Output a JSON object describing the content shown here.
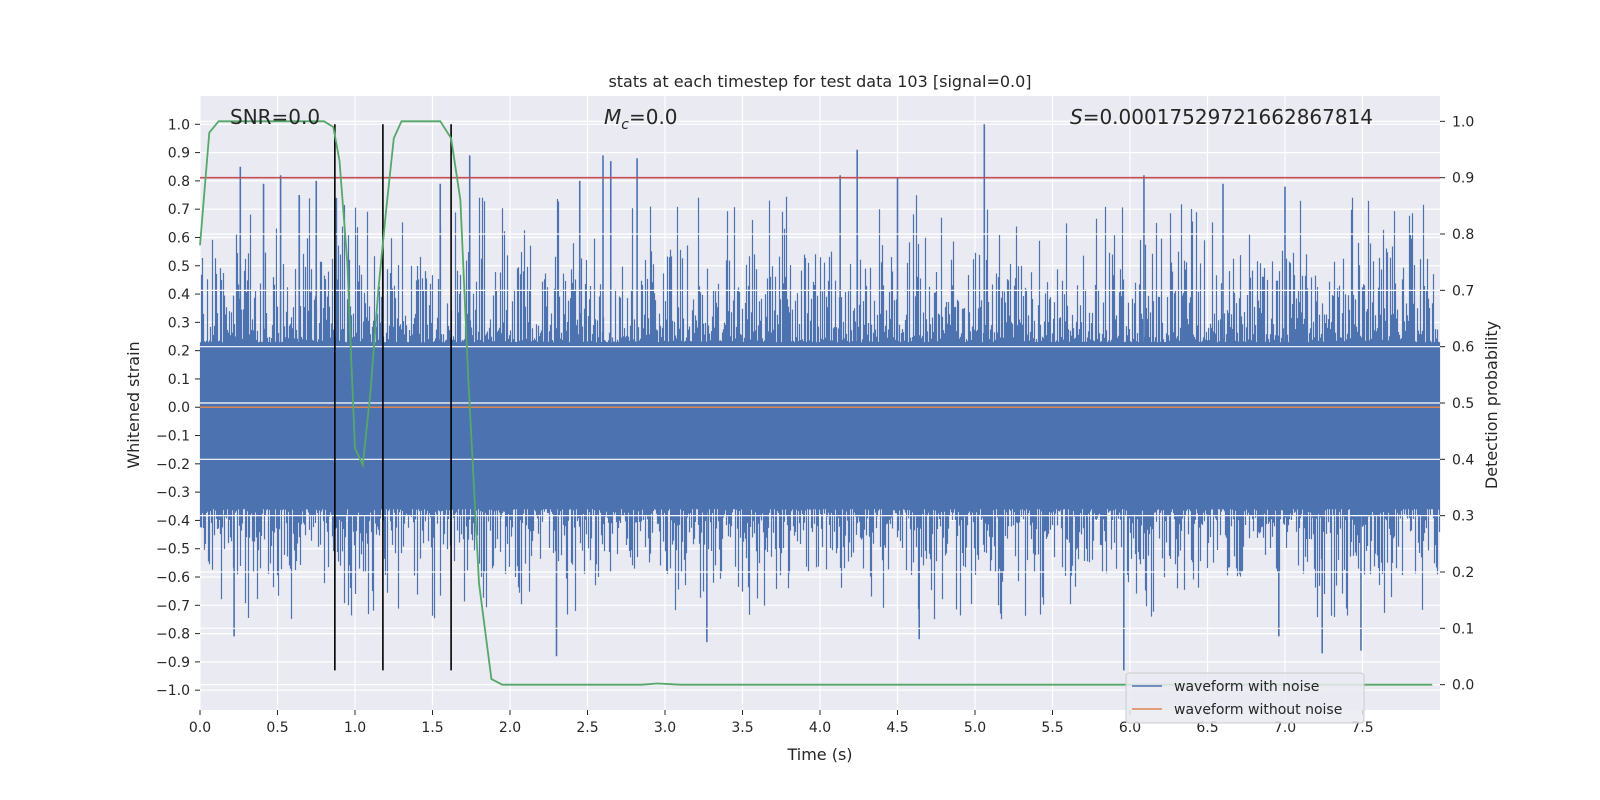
{
  "chart_data": {
    "type": "line",
    "title": "stats at each timestep for test data 103 [signal=0.0]",
    "xlabel": "Time (s)",
    "ylabel": "Whitened strain",
    "ylabel_right": "Detection probability",
    "xlim": [
      0.0,
      8.0
    ],
    "ylim": [
      -1.07,
      1.1
    ],
    "ylim_right": [
      -0.045,
      1.045
    ],
    "x_ticks": [
      "0.0",
      "0.5",
      "1.0",
      "1.5",
      "2.0",
      "2.5",
      "3.0",
      "3.5",
      "4.0",
      "4.5",
      "5.0",
      "5.5",
      "6.0",
      "6.5",
      "7.0",
      "7.5"
    ],
    "x_tick_values": [
      0.0,
      0.5,
      1.0,
      1.5,
      2.0,
      2.5,
      3.0,
      3.5,
      4.0,
      4.5,
      5.0,
      5.5,
      6.0,
      6.5,
      7.0,
      7.5
    ],
    "y_ticks": [
      "1.0",
      "0.9",
      "0.8",
      "0.7",
      "0.6",
      "0.5",
      "0.4",
      "0.3",
      "0.2",
      "0.1",
      "0.0",
      "−0.1",
      "−0.2",
      "−0.3",
      "−0.4",
      "−0.5",
      "−0.6",
      "−0.7",
      "−0.8",
      "−0.9",
      "−1.0"
    ],
    "y_tick_values": [
      1.0,
      0.9,
      0.8,
      0.7,
      0.6,
      0.5,
      0.4,
      0.3,
      0.2,
      0.1,
      0.0,
      -0.1,
      -0.2,
      -0.3,
      -0.4,
      -0.5,
      -0.6,
      -0.7,
      -0.8,
      -0.9,
      -1.0
    ],
    "y_right_ticks": [
      "1.0",
      "0.9",
      "0.8",
      "0.7",
      "0.6",
      "0.5",
      "0.4",
      "0.3",
      "0.2",
      "0.1",
      "0.0"
    ],
    "y_right_tick_values": [
      1.0,
      0.9,
      0.8,
      0.7,
      0.6,
      0.5,
      0.4,
      0.3,
      0.2,
      0.1,
      0.0
    ],
    "annotations": {
      "snr": "SNR=0.0",
      "mc_symbol": "M",
      "mc_sub": "c",
      "mc_value": "=0.0",
      "s_symbol": "S",
      "s_value": "=0.00017529721662867814"
    },
    "series": [
      {
        "name": "waveform with noise",
        "color": "#4c72b0",
        "noise_envelope": {
          "positive_typical_max": 0.55,
          "negative_typical_min": -0.6,
          "peak_max": 1.0,
          "peak_min": -0.93
        },
        "spikes": [
          {
            "x": 0.26,
            "y": 0.85
          },
          {
            "x": 0.41,
            "y": 0.79
          },
          {
            "x": 0.52,
            "y": 0.82
          },
          {
            "x": 0.64,
            "y": 0.75
          },
          {
            "x": 0.75,
            "y": 0.8
          },
          {
            "x": 0.88,
            "y": 0.74
          },
          {
            "x": 1.55,
            "y": 0.79
          },
          {
            "x": 1.74,
            "y": 0.89
          },
          {
            "x": 2.45,
            "y": 0.8
          },
          {
            "x": 2.6,
            "y": 0.89
          },
          {
            "x": 2.65,
            "y": 0.87
          },
          {
            "x": 2.82,
            "y": 0.88
          },
          {
            "x": 4.13,
            "y": 0.82
          },
          {
            "x": 4.24,
            "y": 0.91
          },
          {
            "x": 4.5,
            "y": 0.81
          },
          {
            "x": 5.06,
            "y": 1.0
          },
          {
            "x": 6.09,
            "y": 0.82
          },
          {
            "x": 6.6,
            "y": 0.79
          },
          {
            "x": 7.0,
            "y": 0.78
          },
          {
            "x": 0.22,
            "y": -0.81
          },
          {
            "x": 2.3,
            "y": -0.88
          },
          {
            "x": 3.27,
            "y": -0.83
          },
          {
            "x": 4.64,
            "y": -0.82
          },
          {
            "x": 5.96,
            "y": -0.93
          },
          {
            "x": 7.24,
            "y": -0.87
          },
          {
            "x": 7.49,
            "y": -0.86
          },
          {
            "x": 6.96,
            "y": -0.81
          }
        ]
      },
      {
        "name": "waveform without noise",
        "color": "#dd8452",
        "constant_y": 0.0
      },
      {
        "name": "detection probability",
        "axis": "right",
        "color": "#55a868",
        "x": [
          0.0,
          0.06,
          0.12,
          0.2,
          0.5,
          0.8,
          0.86,
          0.9,
          0.95,
          0.98,
          1.0,
          1.05,
          1.1,
          1.15,
          1.2,
          1.25,
          1.3,
          1.4,
          1.55,
          1.62,
          1.68,
          1.73,
          1.8,
          1.88,
          1.95,
          2.5,
          2.85,
          2.95,
          3.1,
          4.0,
          5.0,
          6.0,
          7.0,
          7.95
        ],
        "y": [
          0.78,
          0.98,
          1.0,
          1.0,
          1.0,
          1.0,
          0.99,
          0.93,
          0.75,
          0.55,
          0.42,
          0.39,
          0.52,
          0.7,
          0.84,
          0.97,
          1.0,
          1.0,
          1.0,
          0.97,
          0.86,
          0.55,
          0.18,
          0.01,
          0.0,
          0.0,
          0.0,
          0.002,
          0.0,
          0.0,
          0.0,
          0.0,
          0.0,
          0.0
        ]
      }
    ],
    "threshold": {
      "axis": "right",
      "value": 0.9,
      "color": "#c44e52"
    },
    "vertical_markers": [
      {
        "x": 0.87,
        "y_top": 1.0,
        "y_bottom": -0.93
      },
      {
        "x": 1.18,
        "y_top": 1.0,
        "y_bottom": -0.93
      },
      {
        "x": 1.62,
        "y_top": 1.0,
        "y_bottom": -0.93
      }
    ],
    "legend": {
      "placement": "bottom-right",
      "entries": [
        {
          "label": "waveform with noise",
          "color": "#4c72b0"
        },
        {
          "label": "waveform without noise",
          "color": "#dd8452"
        }
      ]
    },
    "grid": true
  }
}
